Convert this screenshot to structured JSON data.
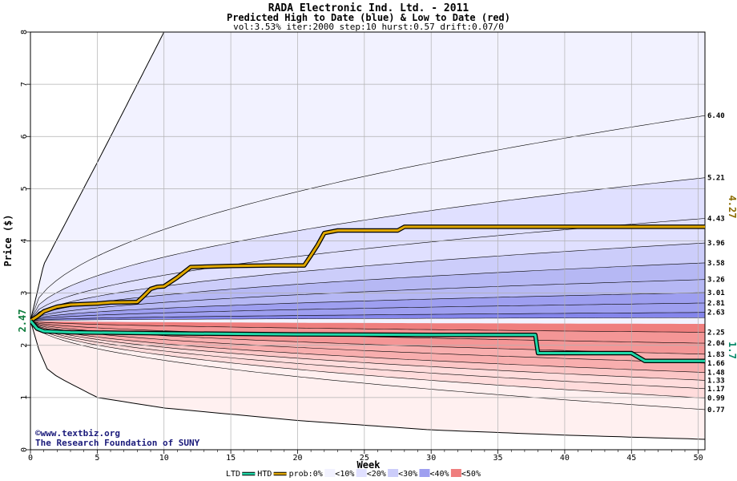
{
  "chart_data": {
    "type": "area",
    "title": "RADA Electronic Ind. Ltd. - 2011",
    "subtitle": "Predicted High to Date (blue) &  Low to Date (red)",
    "params": "vol:3.53% iter:2000 step:10 hurst:0.57 drift:0.07/0",
    "xlabel": "Week",
    "ylabel": "Price ($)",
    "xlim": [
      0,
      50.5
    ],
    "ylim": [
      0,
      8
    ],
    "xticks": [
      0,
      5,
      10,
      15,
      20,
      25,
      30,
      35,
      40,
      45,
      50
    ],
    "yticks": [
      0,
      1,
      2,
      3,
      4,
      5,
      6,
      7,
      8
    ],
    "start_price": 2.47,
    "start_label": "2.47",
    "current_high": 4.27,
    "current_high_label": "4.27",
    "current_low": 1.7,
    "current_low_label": "1.7",
    "high_quantiles": [
      2.63,
      2.81,
      3.01,
      3.26,
      3.58,
      3.96,
      4.43,
      5.21,
      6.4
    ],
    "low_quantiles": [
      2.25,
      2.04,
      1.83,
      1.66,
      1.48,
      1.33,
      1.17,
      0.99,
      0.77
    ],
    "right_labels": [
      "6.40",
      "5.21",
      "4.43",
      "3.96",
      "3.58",
      "3.26",
      "3.01",
      "2.81",
      "2.63",
      "2.25",
      "2.04",
      "1.83",
      "1.66",
      "1.48",
      "1.33",
      "1.17",
      "0.99",
      "0.77"
    ],
    "high_to_date": {
      "name": "HTD",
      "x": [
        0,
        0.5,
        1,
        2,
        3,
        5,
        6,
        8,
        8.5,
        9,
        9.5,
        10,
        11,
        12,
        15,
        18,
        20.5,
        21,
        21.5,
        22,
        23,
        25,
        27.5,
        28,
        30,
        40,
        50.5
      ],
      "y": [
        2.47,
        2.55,
        2.65,
        2.74,
        2.78,
        2.8,
        2.82,
        2.83,
        2.95,
        3.08,
        3.12,
        3.13,
        3.3,
        3.5,
        3.52,
        3.53,
        3.53,
        3.72,
        3.92,
        4.15,
        4.2,
        4.2,
        4.2,
        4.27,
        4.27,
        4.27,
        4.27
      ]
    },
    "low_to_date": {
      "name": "LTD",
      "x": [
        0,
        0.5,
        1,
        3,
        10,
        20,
        30,
        37.8,
        38,
        40,
        45,
        46,
        50.5
      ],
      "y": [
        2.47,
        2.32,
        2.27,
        2.25,
        2.23,
        2.21,
        2.2,
        2.2,
        1.85,
        1.85,
        1.85,
        1.7,
        1.7
      ]
    },
    "outer_bands": {
      "upper_top": [
        [
          0,
          2.47
        ],
        [
          1,
          3.55
        ],
        [
          5,
          5.5
        ],
        [
          10,
          8
        ]
      ],
      "lower_bottom": [
        [
          0,
          2.47
        ],
        [
          1,
          1.6
        ],
        [
          2,
          1.4
        ],
        [
          5,
          1.0
        ],
        [
          10,
          0.8
        ],
        [
          20,
          0.56
        ],
        [
          30,
          0.38
        ],
        [
          40,
          0.28
        ],
        [
          50.5,
          0.2
        ]
      ]
    },
    "legend": {
      "ltd": "LTD",
      "htd": "HTD",
      "prob": "prob:0%",
      "b10": "<10%",
      "b20": "<20%",
      "b30": "<30%",
      "b40": "<40%",
      "b50": "<50%"
    },
    "colors": {
      "high_line": "#e0a800",
      "low_line": "#20d8a8",
      "blue_bands": [
        "#f2f2ff",
        "#e0e0ff",
        "#cccdfa",
        "#b6b8f4",
        "#9e9ff0",
        "#8586ec"
      ],
      "red_bands": [
        "#fff0f0",
        "#ffdcdc",
        "#fcc6c6",
        "#f8aeae",
        "#f49696",
        "#ef7e7e"
      ],
      "grid": "#b0b0b0"
    },
    "credit_line1": "©www.textbiz.org",
    "credit_line2": "The Research Foundation of SUNY"
  }
}
